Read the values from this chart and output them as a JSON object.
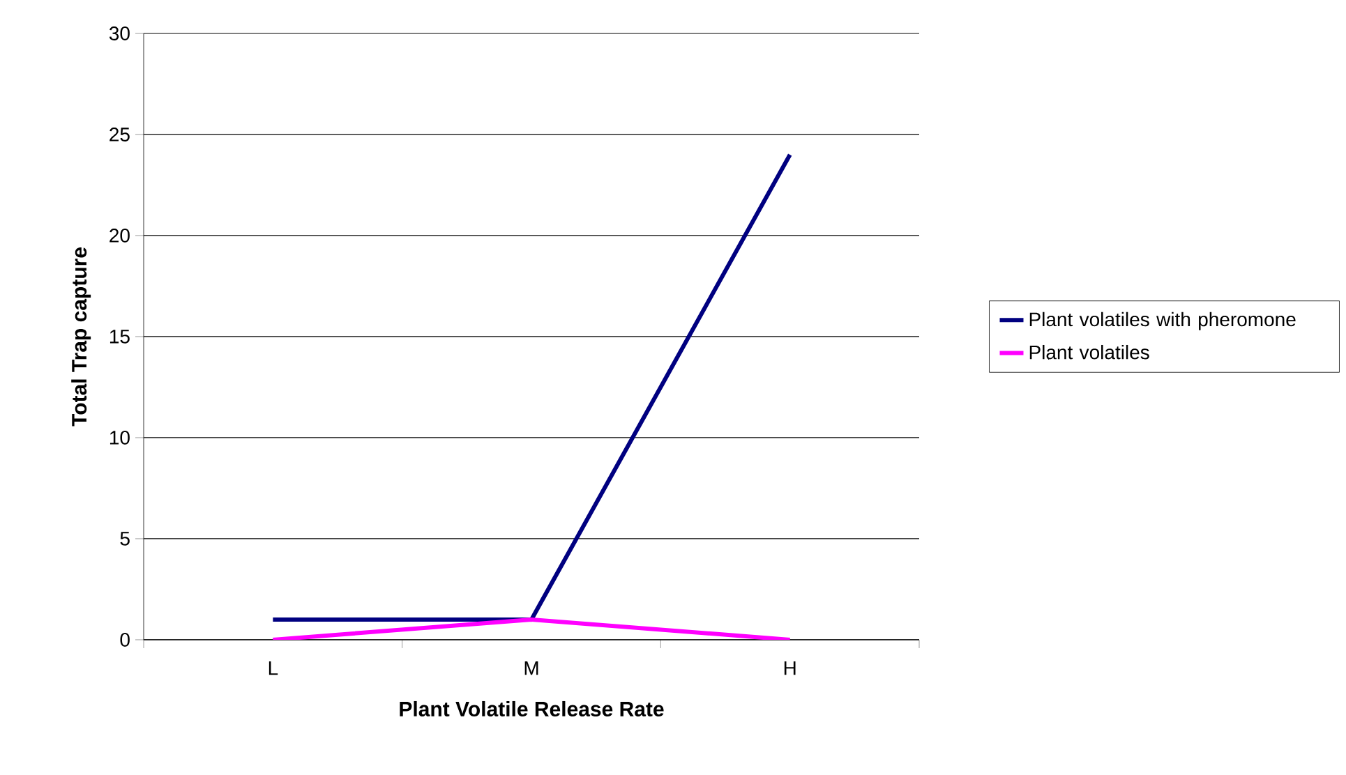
{
  "chart_data": {
    "type": "line",
    "xlabel": "Plant Volatile Release Rate",
    "ylabel": "Total Trap capture",
    "categories": [
      "L",
      "M",
      "H"
    ],
    "series": [
      {
        "name": "Plant volatiles with pheromone",
        "color": "#000080",
        "values": [
          1,
          1,
          24
        ]
      },
      {
        "name": "Plant volatiles",
        "color": "#ff00ff",
        "values": [
          0,
          1,
          0
        ]
      }
    ],
    "ylim": [
      0,
      30
    ],
    "yticks": [
      0,
      5,
      10,
      15,
      20,
      25,
      30
    ],
    "grid": "y",
    "legend": "right",
    "marker": "none",
    "line_style": "solid"
  }
}
